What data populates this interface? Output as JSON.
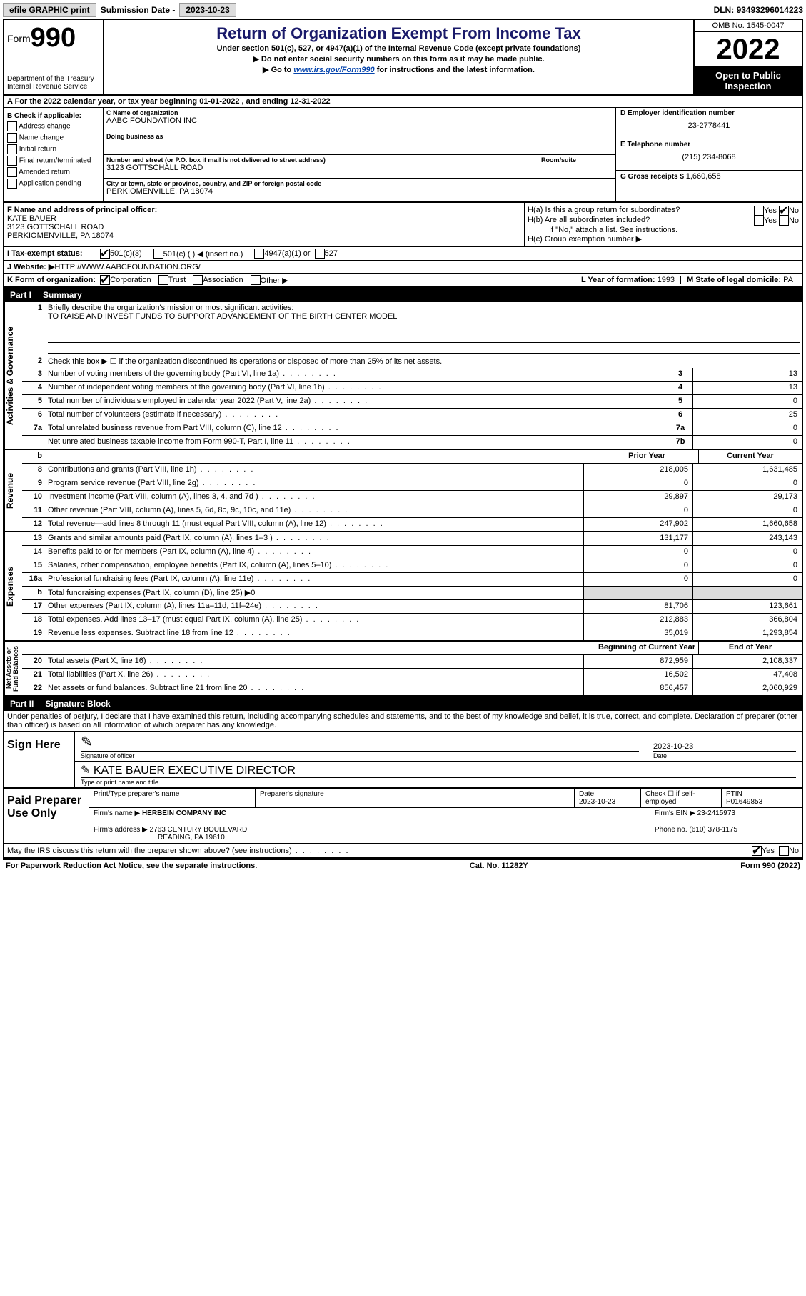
{
  "topbar": {
    "efile": "efile GRAPHIC print",
    "subdate_label": "Submission Date - ",
    "subdate": "2023-10-23",
    "dln_label": "DLN: ",
    "dln": "93493296014223"
  },
  "header": {
    "form_word": "Form",
    "form_num": "990",
    "dept": "Department of the Treasury\nInternal Revenue Service",
    "title": "Return of Organization Exempt From Income Tax",
    "sub": "Under section 501(c), 527, or 4947(a)(1) of the Internal Revenue Code (except private foundations)",
    "note1": "▶ Do not enter social security numbers on this form as it may be made public.",
    "note2_pre": "▶ Go to ",
    "note2_link": "www.irs.gov/Form990",
    "note2_post": " for instructions and the latest information.",
    "omb": "OMB No. 1545-0047",
    "year": "2022",
    "inspect": "Open to Public Inspection"
  },
  "row_a": "A For the 2022 calendar year, or tax year beginning 01-01-2022   , and ending 12-31-2022",
  "col_b": {
    "title": "B Check if applicable:",
    "items": [
      "Address change",
      "Name change",
      "Initial return",
      "Final return/terminated",
      "Amended return",
      "Application pending"
    ]
  },
  "mid": {
    "c_label": "C Name of organization",
    "c_name": "AABC FOUNDATION INC",
    "dba_label": "Doing business as",
    "addr_label": "Number and street (or P.O. box if mail is not delivered to street address)",
    "room_label": "Room/suite",
    "addr": "3123 GOTTSCHALL ROAD",
    "city_label": "City or town, state or province, country, and ZIP or foreign postal code",
    "city": "PERKIOMENVILLE, PA  18074"
  },
  "right_d": {
    "d_label": "D Employer identification number",
    "d_val": "23-2778441",
    "e_label": "E Telephone number",
    "e_val": "(215) 234-8068",
    "g_label": "G Gross receipts $ ",
    "g_val": "1,660,658"
  },
  "fh": {
    "f_label": "F  Name and address of principal officer:",
    "f_name": "KATE BAUER",
    "f_addr1": "3123 GOTTSCHALL ROAD",
    "f_addr2": "PERKIOMENVILLE, PA  18074",
    "ha": "H(a)  Is this a group return for subordinates?",
    "hb": "H(b)  Are all subordinates included?",
    "hb_note": "If \"No,\" attach a list. See instructions.",
    "hc": "H(c)  Group exemption number ▶"
  },
  "tax_status": {
    "label": "I   Tax-exempt status:",
    "o1": "501(c)(3)",
    "o2": "501(c) (  ) ◀ (insert no.)",
    "o3": "4947(a)(1) or",
    "o4": "527"
  },
  "website": {
    "label": "J   Website: ▶",
    "val": " HTTP://WWW.AABCFOUNDATION.ORG/"
  },
  "k_row": "K Form of organization:",
  "k_opts": [
    "Corporation",
    "Trust",
    "Association",
    "Other ▶"
  ],
  "l_label": "L Year of formation: ",
  "l_val": "1993",
  "m_label": "M State of legal domicile: ",
  "m_val": "PA",
  "part1": {
    "title": "Part I",
    "name": "Summary"
  },
  "summary": {
    "q1": "Briefly describe the organization's mission or most significant activities:",
    "q1v": "TO RAISE AND INVEST FUNDS TO SUPPORT ADVANCEMENT OF THE BIRTH CENTER MODEL",
    "q2": "Check this box ▶ ☐  if the organization discontinued its operations or disposed of more than 25% of its net assets.",
    "rows_gov": [
      {
        "n": "3",
        "t": "Number of voting members of the governing body (Part VI, line 1a)",
        "b": "3",
        "v": "13"
      },
      {
        "n": "4",
        "t": "Number of independent voting members of the governing body (Part VI, line 1b)",
        "b": "4",
        "v": "13"
      },
      {
        "n": "5",
        "t": "Total number of individuals employed in calendar year 2022 (Part V, line 2a)",
        "b": "5",
        "v": "0"
      },
      {
        "n": "6",
        "t": "Total number of volunteers (estimate if necessary)",
        "b": "6",
        "v": "25"
      },
      {
        "n": "7a",
        "t": "Total unrelated business revenue from Part VIII, column (C), line 12",
        "b": "7a",
        "v": "0"
      },
      {
        "n": "",
        "t": "Net unrelated business taxable income from Form 990-T, Part I, line 11",
        "b": "7b",
        "v": "0"
      }
    ],
    "hdr_prior": "Prior Year",
    "hdr_curr": "Current Year",
    "rows_rev": [
      {
        "n": "8",
        "t": "Contributions and grants (Part VIII, line 1h)",
        "p": "218,005",
        "c": "1,631,485"
      },
      {
        "n": "9",
        "t": "Program service revenue (Part VIII, line 2g)",
        "p": "0",
        "c": "0"
      },
      {
        "n": "10",
        "t": "Investment income (Part VIII, column (A), lines 3, 4, and 7d )",
        "p": "29,897",
        "c": "29,173"
      },
      {
        "n": "11",
        "t": "Other revenue (Part VIII, column (A), lines 5, 6d, 8c, 9c, 10c, and 11e)",
        "p": "0",
        "c": "0"
      },
      {
        "n": "12",
        "t": "Total revenue—add lines 8 through 11 (must equal Part VIII, column (A), line 12)",
        "p": "247,902",
        "c": "1,660,658"
      }
    ],
    "rows_exp": [
      {
        "n": "13",
        "t": "Grants and similar amounts paid (Part IX, column (A), lines 1–3 )",
        "p": "131,177",
        "c": "243,143"
      },
      {
        "n": "14",
        "t": "Benefits paid to or for members (Part IX, column (A), line 4)",
        "p": "0",
        "c": "0"
      },
      {
        "n": "15",
        "t": "Salaries, other compensation, employee benefits (Part IX, column (A), lines 5–10)",
        "p": "0",
        "c": "0"
      },
      {
        "n": "16a",
        "t": "Professional fundraising fees (Part IX, column (A), line 11e)",
        "p": "0",
        "c": "0"
      },
      {
        "n": "b",
        "t": "Total fundraising expenses (Part IX, column (D), line 25) ▶0",
        "p": "shade",
        "c": "shade"
      },
      {
        "n": "17",
        "t": "Other expenses (Part IX, column (A), lines 11a–11d, 11f–24e)",
        "p": "81,706",
        "c": "123,661"
      },
      {
        "n": "18",
        "t": "Total expenses. Add lines 13–17 (must equal Part IX, column (A), line 25)",
        "p": "212,883",
        "c": "366,804"
      },
      {
        "n": "19",
        "t": "Revenue less expenses. Subtract line 18 from line 12",
        "p": "35,019",
        "c": "1,293,854"
      }
    ],
    "hdr_begin": "Beginning of Current Year",
    "hdr_end": "End of Year",
    "rows_net": [
      {
        "n": "20",
        "t": "Total assets (Part X, line 16)",
        "p": "872,959",
        "c": "2,108,337"
      },
      {
        "n": "21",
        "t": "Total liabilities (Part X, line 26)",
        "p": "16,502",
        "c": "47,408"
      },
      {
        "n": "22",
        "t": "Net assets or fund balances. Subtract line 21 from line 20",
        "p": "856,457",
        "c": "2,060,929"
      }
    ]
  },
  "part2": {
    "title": "Part II",
    "name": "Signature Block"
  },
  "sig": {
    "decl": "Under penalties of perjury, I declare that I have examined this return, including accompanying schedules and statements, and to the best of my knowledge and belief, it is true, correct, and complete. Declaration of preparer (other than officer) is based on all information of which preparer has any knowledge.",
    "sign_here": "Sign Here",
    "officer_sig": "Signature of officer",
    "date": "Date",
    "date_v": "2023-10-23",
    "name_title": "KATE BAUER  EXECUTIVE DIRECTOR",
    "name_title_label": "Type or print name and title"
  },
  "prep": {
    "label": "Paid Preparer Use Only",
    "h1": "Print/Type preparer's name",
    "h2": "Preparer's signature",
    "h3": "Date",
    "h3v": "2023-10-23",
    "h4": "Check ☐ if self-employed",
    "h5": "PTIN",
    "h5v": "P01649853",
    "firm_name_l": "Firm's name    ▶",
    "firm_name": "HERBEIN COMPANY INC",
    "firm_ein_l": "Firm's EIN ▶ ",
    "firm_ein": "23-2415973",
    "firm_addr_l": "Firm's address ▶",
    "firm_addr1": "2763 CENTURY BOULEVARD",
    "firm_addr2": "READING, PA  19610",
    "phone_l": "Phone no. ",
    "phone": "(610) 378-1175"
  },
  "discuss": "May the IRS discuss this return with the preparer shown above? (see instructions)",
  "footer": {
    "left": "For Paperwork Reduction Act Notice, see the separate instructions.",
    "mid": "Cat. No. 11282Y",
    "right": "Form 990 (2022)"
  }
}
